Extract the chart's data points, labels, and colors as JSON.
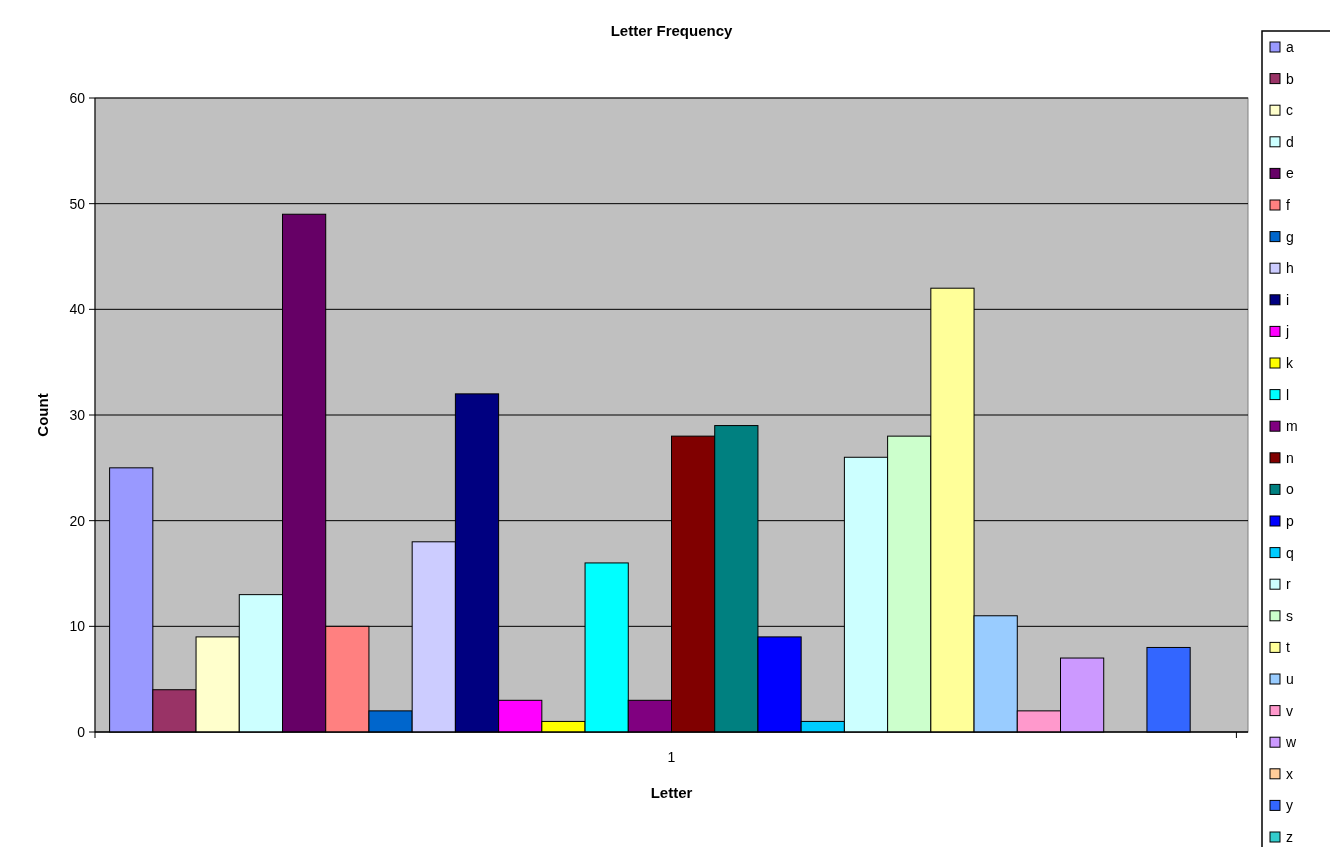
{
  "chart_data": {
    "type": "bar",
    "title": "Letter Frequency",
    "xlabel": "Letter",
    "ylabel": "Count",
    "categories": [
      "1"
    ],
    "series": [
      {
        "name": "a",
        "color": "#9999ff",
        "values": [
          25
        ]
      },
      {
        "name": "b",
        "color": "#993366",
        "values": [
          4
        ]
      },
      {
        "name": "c",
        "color": "#ffffcc",
        "values": [
          9
        ]
      },
      {
        "name": "d",
        "color": "#ccffff",
        "values": [
          13
        ]
      },
      {
        "name": "e",
        "color": "#660066",
        "values": [
          49
        ]
      },
      {
        "name": "f",
        "color": "#ff8080",
        "values": [
          10
        ]
      },
      {
        "name": "g",
        "color": "#0066cc",
        "values": [
          2
        ]
      },
      {
        "name": "h",
        "color": "#ccccff",
        "values": [
          18
        ]
      },
      {
        "name": "i",
        "color": "#000080",
        "values": [
          32
        ]
      },
      {
        "name": "j",
        "color": "#ff00ff",
        "values": [
          3
        ]
      },
      {
        "name": "k",
        "color": "#ffff00",
        "values": [
          1
        ]
      },
      {
        "name": "l",
        "color": "#00ffff",
        "values": [
          16
        ]
      },
      {
        "name": "m",
        "color": "#800080",
        "values": [
          3
        ]
      },
      {
        "name": "n",
        "color": "#800000",
        "values": [
          28
        ]
      },
      {
        "name": "o",
        "color": "#008080",
        "values": [
          29
        ]
      },
      {
        "name": "p",
        "color": "#0000ff",
        "values": [
          9
        ]
      },
      {
        "name": "q",
        "color": "#00ccff",
        "values": [
          1
        ]
      },
      {
        "name": "r",
        "color": "#ccffff",
        "values": [
          26
        ]
      },
      {
        "name": "s",
        "color": "#ccffcc",
        "values": [
          28
        ]
      },
      {
        "name": "t",
        "color": "#ffff99",
        "values": [
          42
        ]
      },
      {
        "name": "u",
        "color": "#99ccff",
        "values": [
          11
        ]
      },
      {
        "name": "v",
        "color": "#ff99cc",
        "values": [
          2
        ]
      },
      {
        "name": "w",
        "color": "#cc99ff",
        "values": [
          7
        ]
      },
      {
        "name": "x",
        "color": "#ffcc99",
        "values": [
          0
        ]
      },
      {
        "name": "y",
        "color": "#3366ff",
        "values": [
          8
        ]
      },
      {
        "name": "z",
        "color": "#33cccc",
        "values": [
          0
        ]
      }
    ],
    "ylim": [
      0,
      60
    ],
    "yticks": [
      0,
      10,
      20,
      30,
      40,
      50,
      60
    ],
    "grid": "y",
    "legend": "right"
  }
}
